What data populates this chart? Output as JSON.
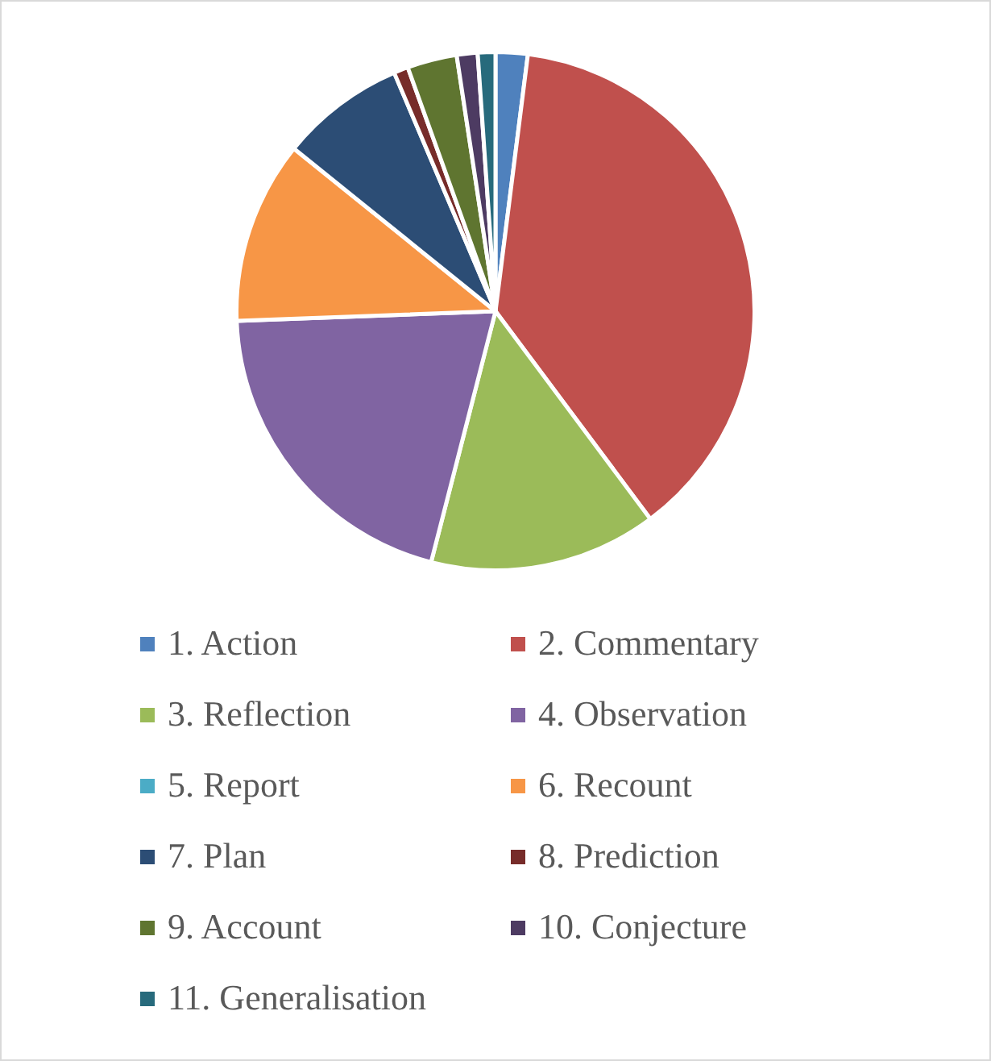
{
  "chart_data": {
    "type": "pie",
    "categories": [
      "1. Action",
      "2. Commentary",
      "3. Reflection",
      "4. Observation",
      "5. Report",
      "6. Recount",
      "7. Plan",
      "8. Prediction",
      "9. Account",
      "10. Conjecture",
      "11. Generalisation"
    ],
    "values": [
      2,
      37.8,
      14.2,
      20.4,
      0,
      11.4,
      7.8,
      0.9,
      3.1,
      1.3,
      1.1
    ],
    "colors": [
      "#4f81bd",
      "#c0504d",
      "#9bbb59",
      "#8064a2",
      "#4bacc6",
      "#f79646",
      "#2c4d75",
      "#772c2a",
      "#5f7530",
      "#4d3b62",
      "#276a7c"
    ],
    "legend": "bottom"
  }
}
